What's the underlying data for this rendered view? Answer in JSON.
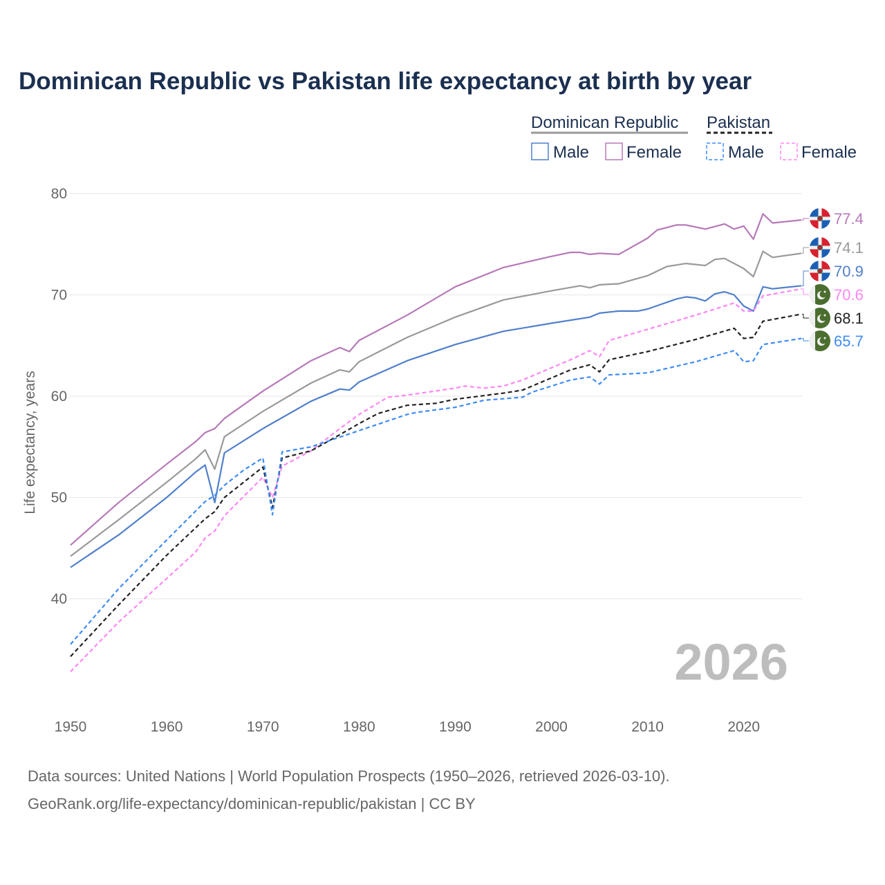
{
  "title": "Dominican Republic vs Pakistan life expectancy at birth by year",
  "legend": {
    "groups": [
      {
        "label": "Dominican Republic",
        "items": [
          "Male",
          "Female"
        ]
      },
      {
        "label": "Pakistan",
        "items": [
          "Male",
          "Female"
        ]
      }
    ]
  },
  "year_watermark": "2026",
  "footer": {
    "line1": "Data sources: United Nations | World Population Prospects (1950–2026, retrieved 2026-03-10).",
    "line2": "GeoRank.org/life-expectancy/dominican-republic/pakistan | CC BY"
  },
  "chart_data": {
    "type": "line",
    "title": "Dominican Republic vs Pakistan life expectancy at birth by year",
    "xlabel": "",
    "ylabel": "Life expectancy, years",
    "xlim": [
      1950,
      2026
    ],
    "ylim": [
      30,
      80
    ],
    "xticks": [
      "1950",
      "1960",
      "1970",
      "1980",
      "1990",
      "2000",
      "2010",
      "2020"
    ],
    "yticks": [
      "40",
      "50",
      "60",
      "70",
      "80"
    ],
    "grid": true,
    "legend_position": "top-right",
    "series": [
      {
        "name": "Dominican Republic Female",
        "country": "Dominican Republic",
        "color": "#b679b8",
        "dashed": false,
        "end_label": "77.4",
        "flag": "dominican-republic",
        "x": [
          1950,
          1955,
          1960,
          1963,
          1964,
          1965,
          1966,
          1970,
          1975,
          1978,
          1979,
          1980,
          1985,
          1990,
          1995,
          2000,
          2002,
          2003,
          2004,
          2005,
          2007,
          2010,
          2011,
          2013,
          2014,
          2016,
          2018,
          2019,
          2020,
          2021,
          2022,
          2023,
          2025,
          2026
        ],
        "values": [
          45.3,
          49.5,
          53.3,
          55.5,
          56.4,
          56.8,
          57.8,
          60.5,
          63.5,
          64.8,
          64.4,
          65.5,
          68.0,
          70.8,
          72.7,
          73.8,
          74.2,
          74.2,
          74.0,
          74.1,
          74.0,
          75.6,
          76.4,
          76.9,
          76.9,
          76.5,
          77.0,
          76.5,
          76.8,
          75.5,
          78.0,
          77.1,
          77.3,
          77.4
        ]
      },
      {
        "name": "Dominican Republic",
        "country": "Dominican Republic",
        "color": "#999999",
        "dashed": false,
        "end_label": "74.1",
        "flag": "dominican-republic",
        "x": [
          1950,
          1955,
          1960,
          1963,
          1964,
          1965,
          1966,
          1970,
          1975,
          1978,
          1979,
          1980,
          1985,
          1990,
          1995,
          2000,
          2003,
          2004,
          2005,
          2007,
          2010,
          2012,
          2014,
          2016,
          2017,
          2018,
          2019,
          2020,
          2021,
          2022,
          2023,
          2026
        ],
        "values": [
          44.2,
          47.8,
          51.5,
          53.8,
          54.7,
          52.8,
          56.0,
          58.5,
          61.3,
          62.6,
          62.4,
          63.4,
          65.8,
          67.8,
          69.5,
          70.4,
          70.9,
          70.7,
          71.0,
          71.1,
          71.9,
          72.8,
          73.1,
          72.9,
          73.5,
          73.6,
          73.1,
          72.6,
          71.8,
          74.3,
          73.7,
          74.1
        ]
      },
      {
        "name": "Dominican Republic Male",
        "country": "Dominican Republic",
        "color": "#4f7fcb",
        "dashed": false,
        "end_label": "70.9",
        "flag": "dominican-republic",
        "x": [
          1950,
          1955,
          1960,
          1963,
          1964,
          1965,
          1966,
          1970,
          1975,
          1978,
          1979,
          1980,
          1985,
          1990,
          1995,
          2000,
          2004,
          2005,
          2007,
          2009,
          2010,
          2013,
          2014,
          2015,
          2016,
          2017,
          2018,
          2019,
          2020,
          2021,
          2022,
          2023,
          2026
        ],
        "values": [
          43.1,
          46.3,
          50.0,
          52.5,
          53.2,
          49.5,
          54.4,
          56.8,
          59.5,
          60.7,
          60.6,
          61.4,
          63.5,
          65.1,
          66.4,
          67.2,
          67.8,
          68.2,
          68.4,
          68.4,
          68.6,
          69.6,
          69.8,
          69.7,
          69.4,
          70.1,
          70.3,
          70.0,
          68.9,
          68.4,
          70.8,
          70.6,
          70.9
        ]
      },
      {
        "name": "Pakistan Female",
        "country": "Pakistan",
        "color": "#ff85f5",
        "dashed": true,
        "end_label": "70.6",
        "flag": "pakistan",
        "x": [
          1950,
          1955,
          1960,
          1963,
          1964,
          1965,
          1966,
          1970,
          1971,
          1972,
          1975,
          1978,
          1980,
          1983,
          1985,
          1990,
          1991,
          1993,
          1995,
          1997,
          2000,
          2002,
          2004,
          2005,
          2006,
          2010,
          2015,
          2019,
          2020,
          2021,
          2022,
          2026
        ],
        "values": [
          32.8,
          37.7,
          42.0,
          44.6,
          46.0,
          46.7,
          48.2,
          52.0,
          50.0,
          53.1,
          54.6,
          56.8,
          58.2,
          59.9,
          60.1,
          60.8,
          61.0,
          60.8,
          61.0,
          61.6,
          62.8,
          63.6,
          64.5,
          63.9,
          65.5,
          66.6,
          68.0,
          69.2,
          68.4,
          68.4,
          69.9,
          70.6
        ]
      },
      {
        "name": "Pakistan",
        "country": "Pakistan",
        "color": "#222222",
        "dashed": true,
        "end_label": "68.1",
        "flag": "pakistan",
        "x": [
          1950,
          1955,
          1960,
          1964,
          1965,
          1966,
          1970,
          1971,
          1972,
          1975,
          1978,
          1980,
          1982,
          1985,
          1988,
          1990,
          1995,
          1997,
          2000,
          2002,
          2004,
          2005,
          2006,
          2010,
          2015,
          2019,
          2020,
          2021,
          2022,
          2026
        ],
        "values": [
          34.3,
          39.4,
          44.3,
          47.9,
          48.6,
          50.0,
          53.0,
          49.0,
          53.9,
          54.6,
          56.2,
          57.3,
          58.3,
          59.1,
          59.3,
          59.7,
          60.3,
          60.6,
          61.8,
          62.6,
          63.1,
          62.4,
          63.6,
          64.4,
          65.6,
          66.7,
          65.7,
          65.8,
          67.4,
          68.1
        ]
      },
      {
        "name": "Pakistan Male",
        "country": "Pakistan",
        "color": "#3d8bf5",
        "dashed": true,
        "end_label": "65.7",
        "flag": "pakistan",
        "x": [
          1950,
          1955,
          1960,
          1964,
          1965,
          1966,
          1968,
          1970,
          1971,
          1972,
          1975,
          1980,
          1985,
          1986,
          1990,
          1993,
          1997,
          1998,
          2000,
          2002,
          2004,
          2005,
          2006,
          2010,
          2015,
          2019,
          2020,
          2021,
          2022,
          2026
        ],
        "values": [
          35.5,
          41.0,
          45.8,
          49.6,
          50.2,
          51.2,
          52.7,
          53.9,
          48.3,
          54.5,
          55.0,
          56.6,
          58.2,
          58.4,
          58.9,
          59.6,
          59.9,
          60.4,
          61.0,
          61.6,
          61.9,
          61.2,
          62.1,
          62.3,
          63.4,
          64.5,
          63.4,
          63.5,
          65.1,
          65.7
        ]
      }
    ]
  }
}
